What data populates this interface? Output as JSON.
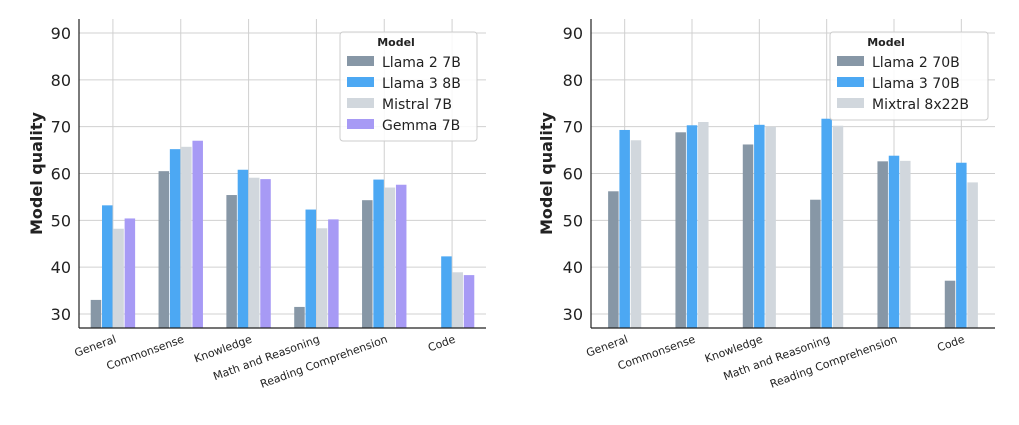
{
  "chart_data": [
    {
      "type": "bar",
      "title": "",
      "xlabel": "",
      "ylabel": "Model quality",
      "ylim": [
        27,
        93
      ],
      "yticks": [
        30,
        40,
        50,
        60,
        70,
        80,
        90
      ],
      "grid": true,
      "categories": [
        "General",
        "Commonsense",
        "Knowledge",
        "Math and Reasoning",
        "Reading Comprehension",
        "Code"
      ],
      "legend": {
        "title": "Model",
        "placement": "top-right"
      },
      "series": [
        {
          "name": "Llama 2 7B",
          "color": "#8797a6",
          "values": [
            33.0,
            60.5,
            55.4,
            31.5,
            54.3,
            null
          ]
        },
        {
          "name": "Llama 3 8B",
          "color": "#4ca8f3",
          "values": [
            53.2,
            65.2,
            60.8,
            52.3,
            58.7,
            42.3
          ]
        },
        {
          "name": "Mistral 7B",
          "color": "#d1d7dd",
          "values": [
            48.2,
            65.7,
            59.1,
            48.3,
            57.0,
            38.9
          ]
        },
        {
          "name": "Gemma 7B",
          "color": "#a79af5",
          "values": [
            50.4,
            67.0,
            58.8,
            50.2,
            57.6,
            38.3
          ]
        }
      ]
    },
    {
      "type": "bar",
      "title": "",
      "xlabel": "",
      "ylabel": "Model quality",
      "ylim": [
        27,
        93
      ],
      "yticks": [
        30,
        40,
        50,
        60,
        70,
        80,
        90
      ],
      "grid": true,
      "categories": [
        "General",
        "Commonsense",
        "Knowledge",
        "Math and Reasoning",
        "Reading Comprehension",
        "Code"
      ],
      "legend": {
        "title": "Model",
        "placement": "top-right"
      },
      "series": [
        {
          "name": "Llama 2 70B",
          "color": "#8797a6",
          "values": [
            56.2,
            68.8,
            66.2,
            54.4,
            62.6,
            37.1
          ]
        },
        {
          "name": "Llama 3 70B",
          "color": "#4ca8f3",
          "values": [
            69.3,
            70.3,
            70.4,
            71.7,
            63.8,
            62.3
          ]
        },
        {
          "name": "Mixtral 8x22B",
          "color": "#d1d7dd",
          "values": [
            67.1,
            71.0,
            70.0,
            70.2,
            62.7,
            58.1
          ]
        }
      ]
    }
  ]
}
